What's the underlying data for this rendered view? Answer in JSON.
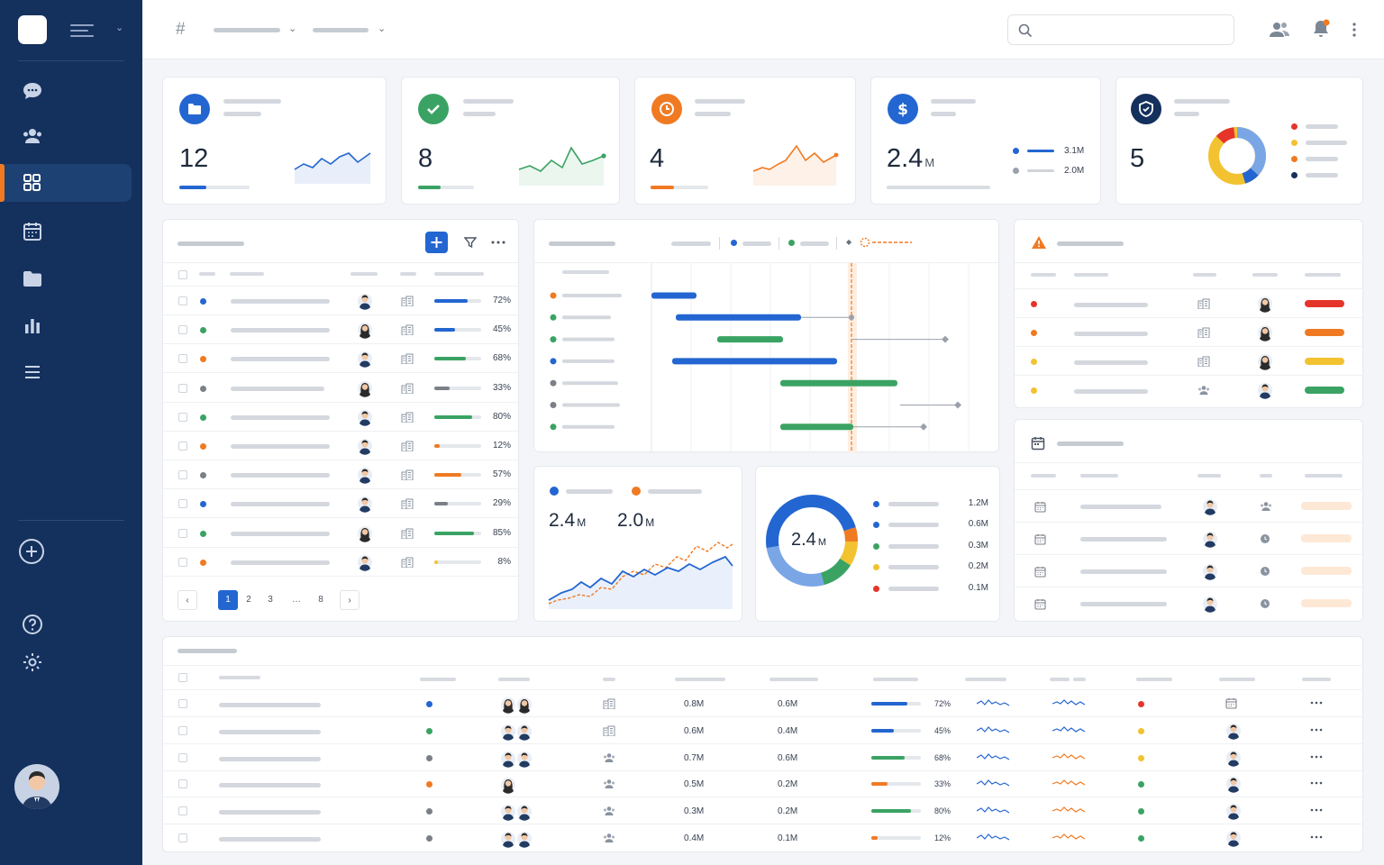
{
  "colors": {
    "sidebar": "#14305d",
    "accent": "#f07a22",
    "blue": "#2366d1",
    "green": "#3aa363",
    "orange": "#f07a22",
    "yellow": "#f2c230",
    "red": "#e5352b",
    "gray": "#7b8088"
  },
  "sidebar": {
    "items": [
      {
        "icon": "chat-icon"
      },
      {
        "icon": "users-icon"
      },
      {
        "icon": "grid-icon",
        "active": true
      },
      {
        "icon": "calendar-icon"
      },
      {
        "icon": "folder-icon"
      },
      {
        "icon": "bar-chart-icon"
      },
      {
        "icon": "list-icon"
      }
    ],
    "bottom": [
      {
        "icon": "add-circle-icon"
      },
      {
        "icon": "help-icon"
      },
      {
        "icon": "settings-icon"
      }
    ]
  },
  "topbar": {
    "hash": "#"
  },
  "kpis": [
    {
      "icon": "folder-icon",
      "color": "#2366d1",
      "value": "12",
      "unit": "",
      "progress": 0.38
    },
    {
      "icon": "check-icon",
      "color": "#3aa363",
      "value": "8",
      "unit": "",
      "progress": 0.4
    },
    {
      "icon": "clock-icon",
      "color": "#f07a22",
      "value": "4",
      "unit": "",
      "progress": 0.4
    },
    {
      "icon": "dollar-icon",
      "color": "#2366d1",
      "value": "2.4",
      "unit": "M",
      "legend": [
        "3.1M",
        "2.0M"
      ]
    },
    {
      "icon": "shield-icon",
      "color": "#14305d",
      "value": "5",
      "unit": ""
    }
  ],
  "table": {
    "rows": [
      {
        "dot": "#2366d1",
        "pct": "72%",
        "p": 0.72,
        "bar": "#2366d1"
      },
      {
        "dot": "#3aa363",
        "pct": "45%",
        "p": 0.45,
        "bar": "#2366d1"
      },
      {
        "dot": "#f07a22",
        "pct": "68%",
        "p": 0.68,
        "bar": "#3aa363"
      },
      {
        "dot": "#7b8088",
        "pct": "33%",
        "p": 0.33,
        "bar": "#7b8088"
      },
      {
        "dot": "#3aa363",
        "pct": "80%",
        "p": 0.8,
        "bar": "#3aa363"
      },
      {
        "dot": "#f07a22",
        "pct": "12%",
        "p": 0.12,
        "bar": "#f07a22"
      },
      {
        "dot": "#7b8088",
        "pct": "57%",
        "p": 0.57,
        "bar": "#f07a22"
      },
      {
        "dot": "#2366d1",
        "pct": "29%",
        "p": 0.29,
        "bar": "#7b8088"
      },
      {
        "dot": "#3aa363",
        "pct": "85%",
        "p": 0.85,
        "bar": "#3aa363"
      },
      {
        "dot": "#f07a22",
        "pct": "8%",
        "p": 0.08,
        "bar": "#f2c230"
      }
    ],
    "pagination": {
      "prev": "‹",
      "pages": [
        "1",
        "2",
        "3",
        "…",
        "8"
      ],
      "next": "›"
    }
  },
  "metrics": {
    "a": "2.4",
    "a_unit": "M",
    "b": "2.0",
    "b_unit": "M"
  },
  "donut": {
    "center": "2.4",
    "center_unit": "M",
    "items": [
      {
        "color": "#2366d1",
        "value": "1.2M"
      },
      {
        "color": "#2366d1",
        "value": "0.6M"
      },
      {
        "color": "#3aa363",
        "value": "0.3M"
      },
      {
        "color": "#f2c230",
        "value": "0.2M"
      },
      {
        "color": "#e5352b",
        "value": "0.1M"
      }
    ]
  },
  "alerts": [
    {
      "dot": "#e5352b",
      "bar": "#e5352b"
    },
    {
      "dot": "#f07a22",
      "bar": "#f07a22"
    },
    {
      "dot": "#f2c230",
      "bar": "#f2c230"
    },
    {
      "dot": "#f2c230",
      "bar": "#3aa363"
    }
  ],
  "bottom_table": {
    "rows": [
      {
        "v1": "0.8M",
        "v2": "0.6M",
        "pct": "72%",
        "p": 0.72,
        "bar": "#2366d1",
        "dot": "#2366d1",
        "status": "#e5352b"
      },
      {
        "v1": "0.6M",
        "v2": "0.4M",
        "pct": "45%",
        "p": 0.45,
        "bar": "#2366d1",
        "dot": "#3aa363",
        "status": "#f2c230"
      },
      {
        "v1": "0.7M",
        "v2": "0.6M",
        "pct": "68%",
        "p": 0.68,
        "bar": "#3aa363",
        "dot": "#7b8088",
        "status": "#f2c230"
      },
      {
        "v1": "0.5M",
        "v2": "0.2M",
        "pct": "33%",
        "p": 0.33,
        "bar": "#f07a22",
        "dot": "#f07a22",
        "status": "#3aa363"
      },
      {
        "v1": "0.3M",
        "v2": "0.2M",
        "pct": "80%",
        "p": 0.8,
        "bar": "#3aa363",
        "dot": "#7b8088",
        "status": "#3aa363"
      },
      {
        "v1": "0.4M",
        "v2": "0.1M",
        "pct": "12%",
        "p": 0.12,
        "bar": "#f07a22",
        "dot": "#7b8088",
        "status": "#3aa363"
      }
    ]
  }
}
